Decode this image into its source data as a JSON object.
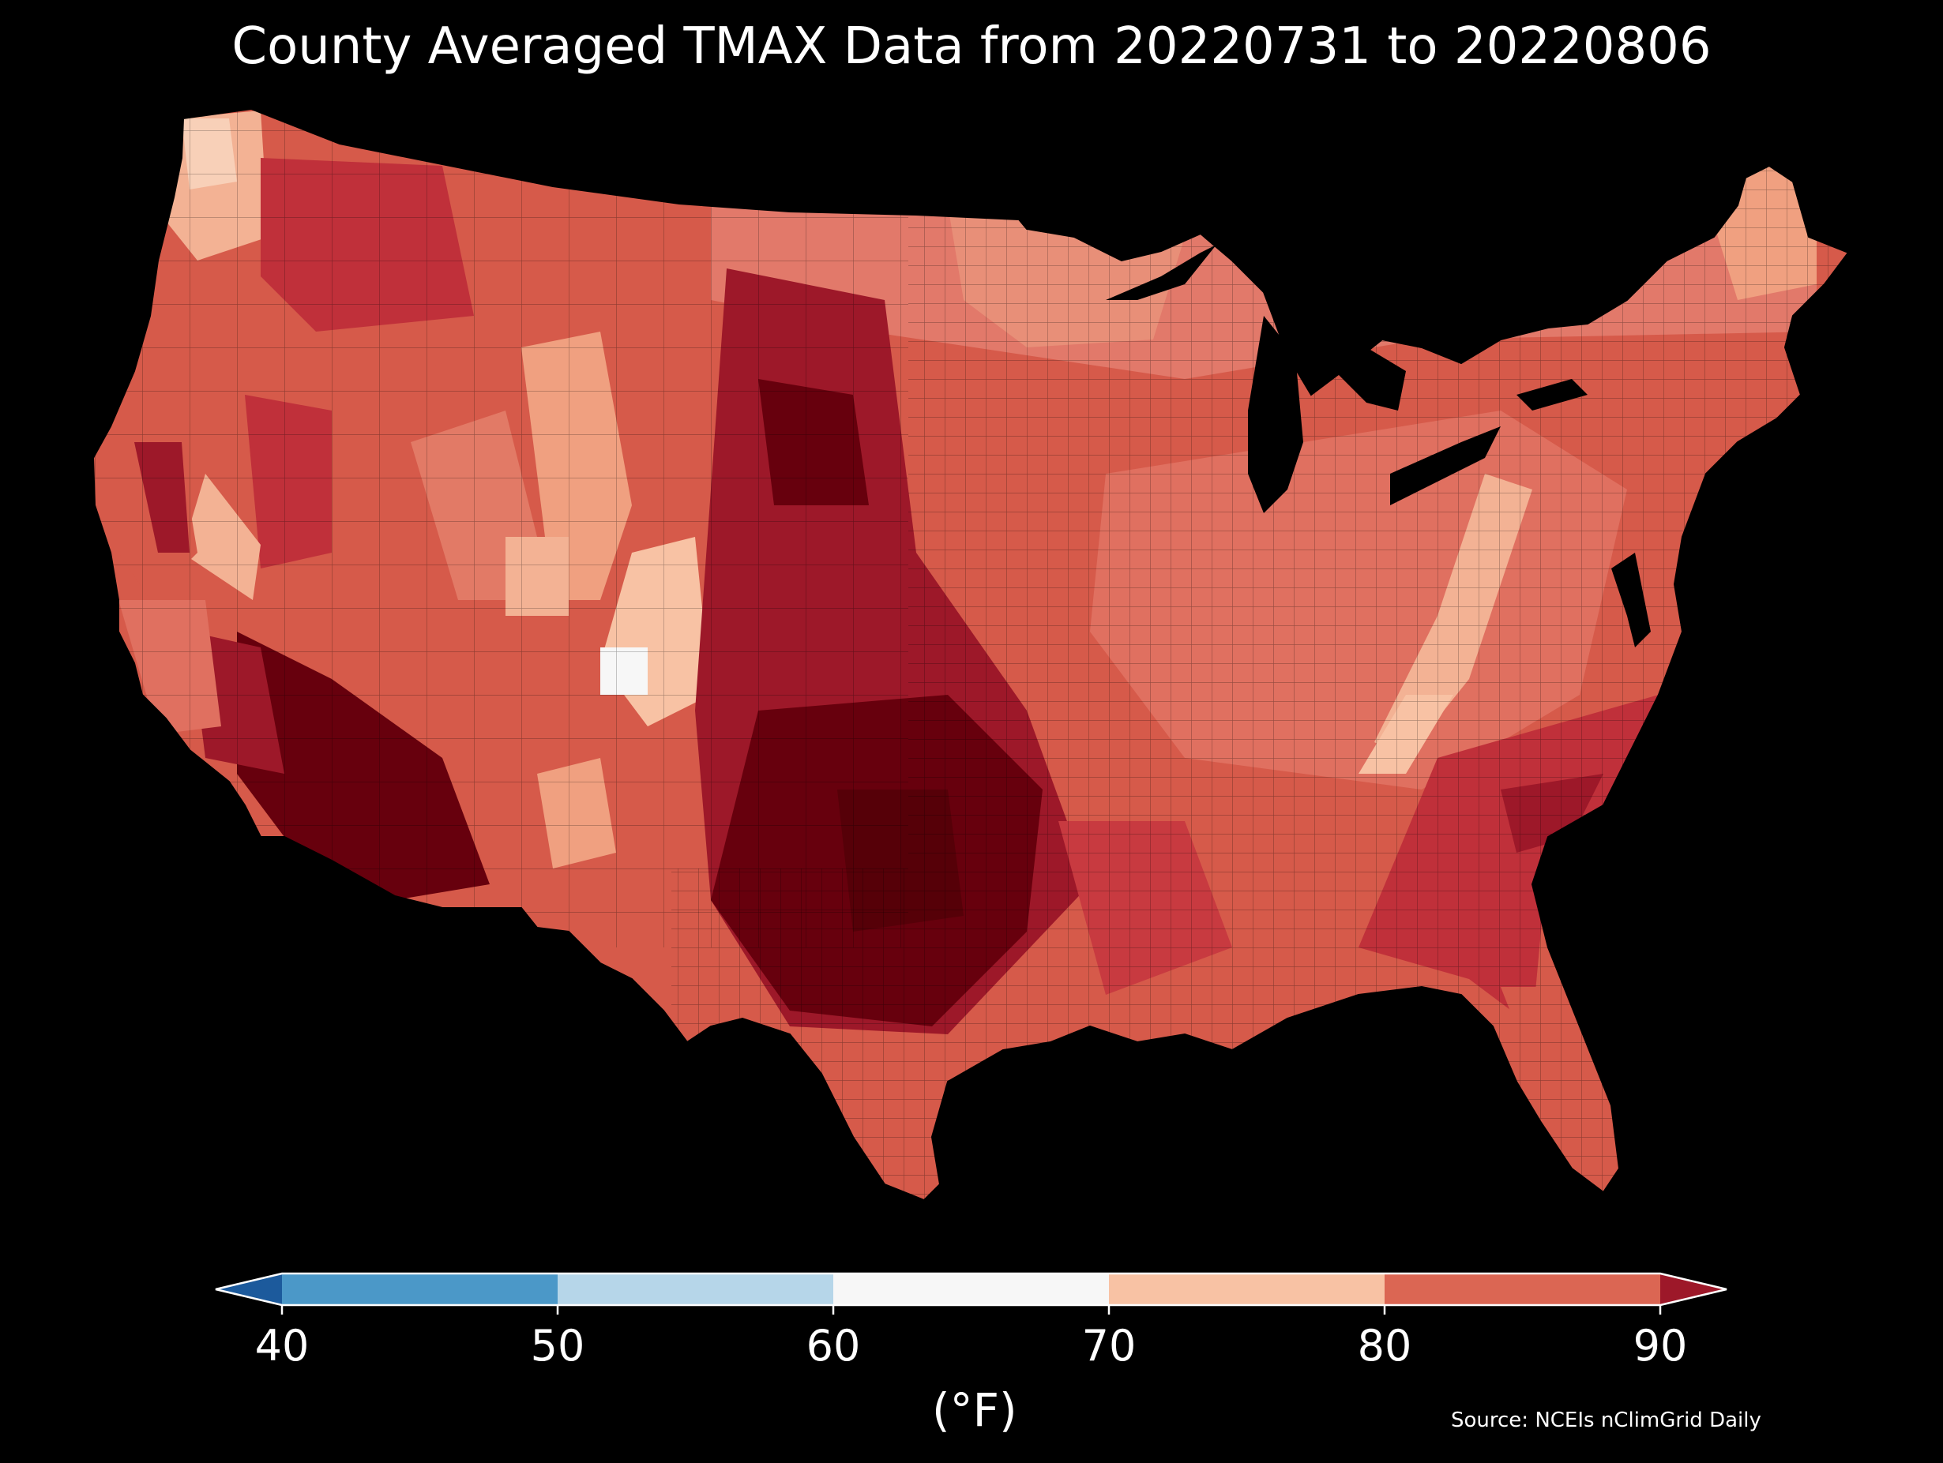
{
  "title": "County Averaged TMAX Data from 20220731 to 20220806",
  "colorbar": {
    "unit": "(°F)",
    "ticks": [
      "40",
      "50",
      "60",
      "70",
      "80",
      "90"
    ],
    "bins": [
      {
        "from": 30,
        "to": 40,
        "color": "#1c5a9c",
        "kind": "extend-low"
      },
      {
        "from": 40,
        "to": 50,
        "color": "#4b98c8"
      },
      {
        "from": 50,
        "to": 60,
        "color": "#b6d6e9"
      },
      {
        "from": 60,
        "to": 70,
        "color": "#f7f7f7"
      },
      {
        "from": 70,
        "to": 80,
        "color": "#f8c2a4"
      },
      {
        "from": 80,
        "to": 90,
        "color": "#db6653"
      },
      {
        "from": 90,
        "to": 100,
        "color": "#9d1829",
        "kind": "extend-high"
      }
    ]
  },
  "source": "Source: NCEIs nClimGrid Daily",
  "colors": {
    "background": "#000000",
    "hottest": "#67000d",
    "very_hot": "#9d1829",
    "hot": "#c0303a",
    "warm": "#db6653",
    "mild": "#f0a080",
    "cool": "#f8c2a4",
    "coolest": "#f7f7f7"
  }
}
